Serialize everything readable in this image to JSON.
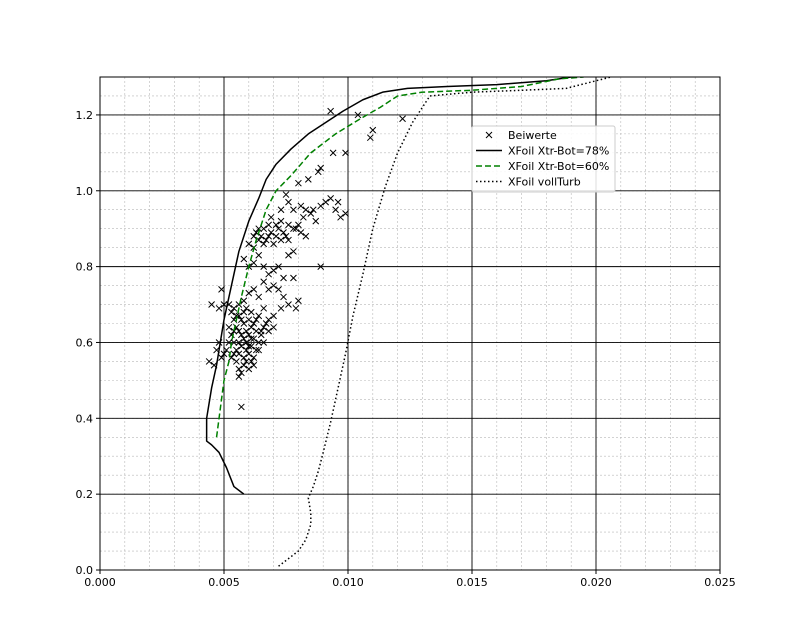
{
  "chart_data": {
    "type": "scatter",
    "title": "",
    "xlabel": "",
    "ylabel": "",
    "xlim": [
      0.0,
      0.025
    ],
    "ylim": [
      0.0,
      1.3
    ],
    "xticks": [
      "0.000",
      "0.005",
      "0.010",
      "0.015",
      "0.020",
      "0.025"
    ],
    "yticks": [
      "0.0",
      "0.2",
      "0.4",
      "0.6",
      "0.8",
      "1.0",
      "1.2"
    ],
    "grid": "major and minor",
    "legend_position": "upper right",
    "series": [
      {
        "name": "Beiwerte",
        "style": "marker-x",
        "color": "#000000",
        "points": [
          [
            0.0093,
            1.21
          ],
          [
            0.0104,
            1.2
          ],
          [
            0.011,
            1.16
          ],
          [
            0.0109,
            1.14
          ],
          [
            0.0122,
            1.19
          ],
          [
            0.0099,
            1.1
          ],
          [
            0.0094,
            1.1
          ],
          [
            0.0089,
            1.06
          ],
          [
            0.0088,
            1.05
          ],
          [
            0.0084,
            1.03
          ],
          [
            0.008,
            1.02
          ],
          [
            0.0075,
            0.99
          ],
          [
            0.0076,
            0.97
          ],
          [
            0.0073,
            0.95
          ],
          [
            0.0078,
            0.95
          ],
          [
            0.0081,
            0.96
          ],
          [
            0.0083,
            0.95
          ],
          [
            0.0085,
            0.94
          ],
          [
            0.0087,
            0.92
          ],
          [
            0.0089,
            0.96
          ],
          [
            0.0091,
            0.97
          ],
          [
            0.0093,
            0.98
          ],
          [
            0.0095,
            0.95
          ],
          [
            0.0097,
            0.93
          ],
          [
            0.0099,
            0.94
          ],
          [
            0.0096,
            0.97
          ],
          [
            0.0086,
            0.95
          ],
          [
            0.0082,
            0.93
          ],
          [
            0.008,
            0.91
          ],
          [
            0.0078,
            0.9
          ],
          [
            0.0083,
            0.88
          ],
          [
            0.0089,
            0.8
          ],
          [
            0.006,
            0.86
          ],
          [
            0.0062,
            0.88
          ],
          [
            0.0063,
            0.89
          ],
          [
            0.0064,
            0.87
          ],
          [
            0.0065,
            0.88
          ],
          [
            0.0066,
            0.9
          ],
          [
            0.0067,
            0.87
          ],
          [
            0.0068,
            0.88
          ],
          [
            0.0069,
            0.89
          ],
          [
            0.007,
            0.86
          ],
          [
            0.0071,
            0.88
          ],
          [
            0.0072,
            0.9
          ],
          [
            0.0073,
            0.87
          ],
          [
            0.0074,
            0.89
          ],
          [
            0.0075,
            0.88
          ],
          [
            0.0076,
            0.87
          ],
          [
            0.0071,
            0.91
          ],
          [
            0.0068,
            0.91
          ],
          [
            0.0066,
            0.86
          ],
          [
            0.0064,
            0.9
          ],
          [
            0.0062,
            0.85
          ],
          [
            0.0069,
            0.93
          ],
          [
            0.0073,
            0.92
          ],
          [
            0.0076,
            0.91
          ],
          [
            0.0079,
            0.9
          ],
          [
            0.0081,
            0.89
          ],
          [
            0.0058,
            0.82
          ],
          [
            0.006,
            0.8
          ],
          [
            0.0062,
            0.81
          ],
          [
            0.0064,
            0.83
          ],
          [
            0.0066,
            0.8
          ],
          [
            0.0068,
            0.78
          ],
          [
            0.007,
            0.79
          ],
          [
            0.0072,
            0.8
          ],
          [
            0.0074,
            0.77
          ],
          [
            0.0076,
            0.83
          ],
          [
            0.0078,
            0.84
          ],
          [
            0.0066,
            0.76
          ],
          [
            0.0068,
            0.74
          ],
          [
            0.007,
            0.75
          ],
          [
            0.0072,
            0.74
          ],
          [
            0.0074,
            0.72
          ],
          [
            0.0076,
            0.7
          ],
          [
            0.0078,
            0.77
          ],
          [
            0.0079,
            0.69
          ],
          [
            0.008,
            0.71
          ],
          [
            0.0073,
            0.69
          ],
          [
            0.007,
            0.67
          ],
          [
            0.0068,
            0.66
          ],
          [
            0.0066,
            0.69
          ],
          [
            0.0064,
            0.72
          ],
          [
            0.0062,
            0.74
          ],
          [
            0.006,
            0.73
          ],
          [
            0.0058,
            0.71
          ],
          [
            0.0056,
            0.7
          ],
          [
            0.0054,
            0.69
          ],
          [
            0.0052,
            0.7
          ],
          [
            0.005,
            0.7
          ],
          [
            0.0048,
            0.69
          ],
          [
            0.0045,
            0.7
          ],
          [
            0.0049,
            0.74
          ],
          [
            0.0055,
            0.64
          ],
          [
            0.0056,
            0.63
          ],
          [
            0.0057,
            0.62
          ],
          [
            0.0058,
            0.65
          ],
          [
            0.0059,
            0.6
          ],
          [
            0.006,
            0.62
          ],
          [
            0.0061,
            0.64
          ],
          [
            0.0062,
            0.61
          ],
          [
            0.0063,
            0.63
          ],
          [
            0.0064,
            0.6
          ],
          [
            0.0065,
            0.62
          ],
          [
            0.0054,
            0.6
          ],
          [
            0.0055,
            0.58
          ],
          [
            0.0056,
            0.57
          ],
          [
            0.0057,
            0.59
          ],
          [
            0.0058,
            0.56
          ],
          [
            0.0059,
            0.58
          ],
          [
            0.006,
            0.57
          ],
          [
            0.0061,
            0.59
          ],
          [
            0.0062,
            0.56
          ],
          [
            0.0063,
            0.58
          ],
          [
            0.0053,
            0.62
          ],
          [
            0.0052,
            0.6
          ],
          [
            0.0051,
            0.58
          ],
          [
            0.005,
            0.57
          ],
          [
            0.0049,
            0.56
          ],
          [
            0.0047,
            0.58
          ],
          [
            0.0046,
            0.54
          ],
          [
            0.0044,
            0.55
          ],
          [
            0.0048,
            0.6
          ],
          [
            0.0052,
            0.64
          ],
          [
            0.0054,
            0.66
          ],
          [
            0.0056,
            0.67
          ],
          [
            0.0058,
            0.68
          ],
          [
            0.006,
            0.66
          ],
          [
            0.0062,
            0.65
          ],
          [
            0.0064,
            0.67
          ],
          [
            0.0066,
            0.64
          ],
          [
            0.0055,
            0.55
          ],
          [
            0.0056,
            0.53
          ],
          [
            0.0057,
            0.52
          ],
          [
            0.0058,
            0.54
          ],
          [
            0.0059,
            0.55
          ],
          [
            0.006,
            0.53
          ],
          [
            0.0061,
            0.55
          ],
          [
            0.0062,
            0.54
          ],
          [
            0.0053,
            0.56
          ],
          [
            0.0054,
            0.57
          ],
          [
            0.0056,
            0.51
          ],
          [
            0.0057,
            0.43
          ],
          [
            0.0065,
            0.63
          ],
          [
            0.0067,
            0.65
          ],
          [
            0.0068,
            0.63
          ],
          [
            0.007,
            0.64
          ],
          [
            0.0066,
            0.6
          ],
          [
            0.0064,
            0.58
          ],
          [
            0.0063,
            0.66
          ],
          [
            0.0061,
            0.68
          ],
          [
            0.0059,
            0.69
          ],
          [
            0.0057,
            0.66
          ],
          [
            0.0055,
            0.67
          ],
          [
            0.0053,
            0.68
          ],
          [
            0.006,
            0.59
          ],
          [
            0.0058,
            0.61
          ],
          [
            0.0056,
            0.6
          ],
          [
            0.0054,
            0.63
          ],
          [
            0.0061,
            0.61
          ],
          [
            0.0059,
            0.63
          ]
        ]
      },
      {
        "name": "XFoil Xtr-Bot=78%",
        "style": "solid",
        "color": "#000000",
        "points": [
          [
            0.0058,
            0.2
          ],
          [
            0.0054,
            0.22
          ],
          [
            0.0051,
            0.27
          ],
          [
            0.0048,
            0.31
          ],
          [
            0.0045,
            0.33
          ],
          [
            0.0043,
            0.34
          ],
          [
            0.0043,
            0.37
          ],
          [
            0.0043,
            0.4
          ],
          [
            0.0044,
            0.44
          ],
          [
            0.0045,
            0.48
          ],
          [
            0.0047,
            0.54
          ],
          [
            0.0048,
            0.58
          ],
          [
            0.0049,
            0.62
          ],
          [
            0.005,
            0.66
          ],
          [
            0.0052,
            0.72
          ],
          [
            0.0054,
            0.78
          ],
          [
            0.0056,
            0.84
          ],
          [
            0.006,
            0.92
          ],
          [
            0.0064,
            0.98
          ],
          [
            0.0067,
            1.03
          ],
          [
            0.0071,
            1.07
          ],
          [
            0.0077,
            1.11
          ],
          [
            0.0084,
            1.15
          ],
          [
            0.0091,
            1.18
          ],
          [
            0.0098,
            1.21
          ],
          [
            0.0106,
            1.24
          ],
          [
            0.0114,
            1.26
          ],
          [
            0.0124,
            1.27
          ],
          [
            0.014,
            1.275
          ],
          [
            0.016,
            1.28
          ],
          [
            0.018,
            1.29
          ],
          [
            0.019,
            1.3
          ]
        ]
      },
      {
        "name": "XFoil Xtr-Bot=60%",
        "style": "dashed",
        "color": "#008000",
        "points": [
          [
            0.0047,
            0.35
          ],
          [
            0.0048,
            0.4
          ],
          [
            0.0049,
            0.45
          ],
          [
            0.005,
            0.5
          ],
          [
            0.0052,
            0.55
          ],
          [
            0.0053,
            0.6
          ],
          [
            0.0055,
            0.66
          ],
          [
            0.0057,
            0.72
          ],
          [
            0.006,
            0.8
          ],
          [
            0.0063,
            0.87
          ],
          [
            0.0067,
            0.95
          ],
          [
            0.0071,
            1.0
          ],
          [
            0.0077,
            1.04
          ],
          [
            0.0085,
            1.1
          ],
          [
            0.0095,
            1.15
          ],
          [
            0.0105,
            1.19
          ],
          [
            0.0113,
            1.22
          ],
          [
            0.012,
            1.25
          ],
          [
            0.013,
            1.26
          ],
          [
            0.015,
            1.265
          ],
          [
            0.017,
            1.275
          ],
          [
            0.0185,
            1.295
          ],
          [
            0.0195,
            1.3
          ]
        ]
      },
      {
        "name": "XFoil vollTurb",
        "style": "dotted",
        "color": "#000000",
        "points": [
          [
            0.0072,
            0.01
          ],
          [
            0.0076,
            0.03
          ],
          [
            0.008,
            0.05
          ],
          [
            0.0083,
            0.08
          ],
          [
            0.0085,
            0.12
          ],
          [
            0.0085,
            0.15
          ],
          [
            0.0084,
            0.19
          ],
          [
            0.0086,
            0.22
          ],
          [
            0.0088,
            0.26
          ],
          [
            0.009,
            0.31
          ],
          [
            0.0093,
            0.39
          ],
          [
            0.0096,
            0.48
          ],
          [
            0.0099,
            0.57
          ],
          [
            0.0102,
            0.67
          ],
          [
            0.0106,
            0.78
          ],
          [
            0.011,
            0.9
          ],
          [
            0.0115,
            1.01
          ],
          [
            0.012,
            1.1
          ],
          [
            0.0126,
            1.18
          ],
          [
            0.0133,
            1.25
          ],
          [
            0.015,
            1.26
          ],
          [
            0.017,
            1.265
          ],
          [
            0.0188,
            1.27
          ],
          [
            0.02,
            1.29
          ],
          [
            0.0206,
            1.3
          ]
        ]
      }
    ]
  }
}
